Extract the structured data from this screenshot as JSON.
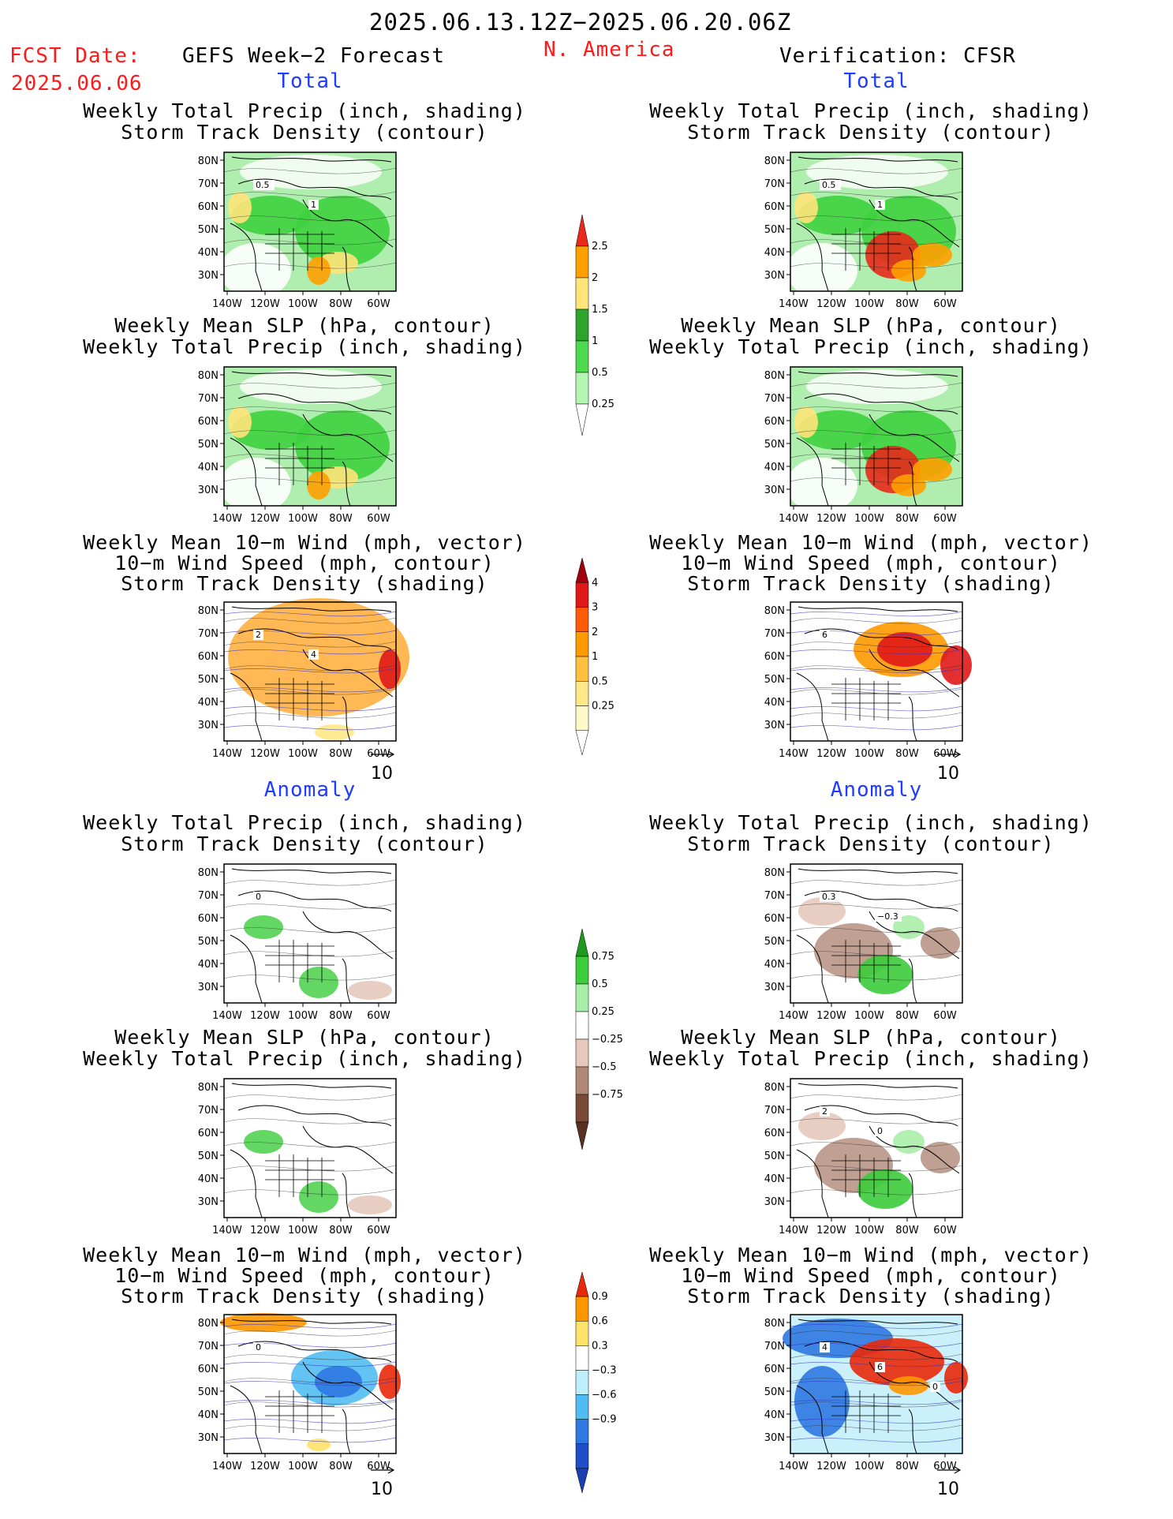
{
  "header": {
    "valid_range": "2025.06.13.12Z−2025.06.20.06Z",
    "fcst_label": "FCST Date:",
    "fcst_date": "2025.06.06",
    "forecast_title": "GEFS Week−2 Forecast",
    "region": "N. America",
    "verification": "Verification: CFSR"
  },
  "sections": {
    "total": "Total",
    "anomaly": "Anomaly"
  },
  "panel_titles": {
    "precip": [
      "Weekly Total Precip (inch, shading)",
      "Storm Track Density (contour)"
    ],
    "slp": [
      "Weekly Mean SLP (hPa, contour)",
      "Weekly Total Precip (inch, shading)"
    ],
    "wind": [
      "Weekly Mean 10−m Wind (mph, vector)",
      "10−m Wind Speed (mph, contour)",
      "Storm Track Density (shading)"
    ]
  },
  "axes": {
    "lat_ticks": [
      "80N",
      "70N",
      "60N",
      "50N",
      "40N",
      "30N"
    ],
    "lon_ticks": [
      "140W",
      "120W",
      "100W",
      "80W",
      "60W"
    ]
  },
  "vector_reference": "10",
  "colorbars": {
    "precip_total": {
      "labels": [
        "2.5",
        "2",
        "1.5",
        "1",
        "0.5",
        "0.25"
      ],
      "colors": [
        "#e8291b",
        "#ffa000",
        "#ffe47a",
        "#2ea32e",
        "#4ed94e",
        "#b4f5b4"
      ]
    },
    "storm_total": {
      "labels": [
        "4",
        "3",
        "2",
        "1",
        "0.5",
        "0.25"
      ],
      "colors": [
        "#a0000d",
        "#e01818",
        "#ff5a0a",
        "#ff9a00",
        "#ffc040",
        "#ffe888",
        "#fff8c8"
      ]
    },
    "precip_anom": {
      "labels": [
        "0.75",
        "0.5",
        "0.25",
        "−0.25",
        "−0.5",
        "−0.75"
      ],
      "colors_pos": [
        "#1e9a1e",
        "#3ccc3c",
        "#a8eea8"
      ],
      "colors_neg": [
        "#e6c8bc",
        "#b08878",
        "#7a4a38"
      ]
    },
    "storm_anom": {
      "labels": [
        "0.9",
        "0.6",
        "0.3",
        "−0.3",
        "−0.6",
        "−0.9"
      ],
      "colors_pos": [
        "#e8280a",
        "#ff9600",
        "#ffe26a"
      ],
      "colors_neg": [
        "#bdeefa",
        "#52bcf2",
        "#2f78e2",
        "#1e4ec8"
      ]
    }
  },
  "contour_labels": {
    "r1_left": [
      "0.5",
      "1"
    ],
    "r1_right": [
      "0.5",
      "1"
    ],
    "r3_left": [
      "2",
      "4"
    ],
    "r3_right": [
      "6"
    ],
    "r4_left": [
      "0"
    ],
    "r4_right": [
      "0.3",
      "−0.3"
    ],
    "r5_right": [
      "2",
      "0"
    ],
    "r6_left": [
      "0"
    ],
    "r6_right": [
      "4",
      "6",
      "0"
    ]
  }
}
